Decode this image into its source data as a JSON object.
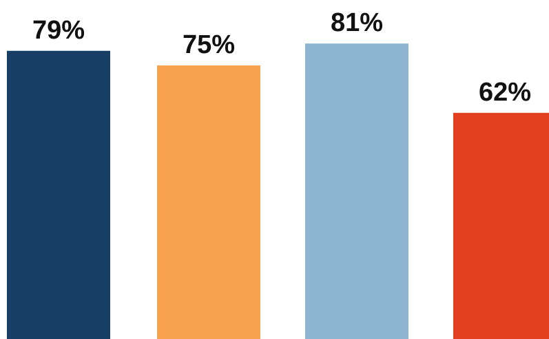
{
  "chart_data": {
    "type": "bar",
    "categories": [
      "",
      "",
      "",
      ""
    ],
    "values": [
      79,
      75,
      81,
      62
    ],
    "data_labels": [
      "79%",
      "75%",
      "81%",
      "62%"
    ],
    "colors": [
      "#173f66",
      "#f6a24f",
      "#8db4d0",
      "#e2401f"
    ],
    "title": "",
    "xlabel": "",
    "ylabel": "",
    "ylim": [
      0,
      100
    ],
    "grid": false,
    "legend": "none"
  }
}
